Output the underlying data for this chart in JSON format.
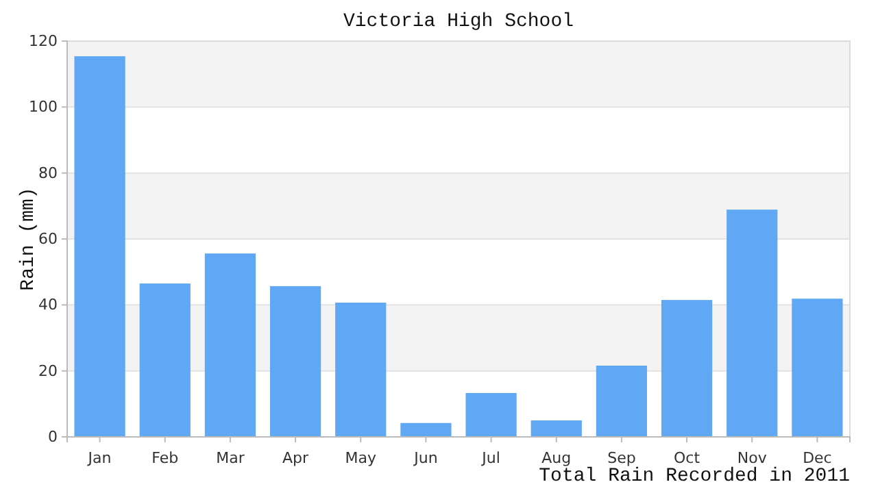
{
  "chart_data": {
    "type": "bar",
    "title": "Victoria High School",
    "xlabel": "Total Rain Recorded in 2011",
    "ylabel": "Rain (mm)",
    "categories": [
      "Jan",
      "Feb",
      "Mar",
      "Apr",
      "May",
      "Jun",
      "Jul",
      "Aug",
      "Sep",
      "Oct",
      "Nov",
      "Dec"
    ],
    "values": [
      115.4,
      46.5,
      55.6,
      45.7,
      40.7,
      4.2,
      13.3,
      5.0,
      21.6,
      41.5,
      68.9,
      41.9
    ],
    "color": "#60a8f4",
    "ylim": [
      0,
      120
    ],
    "yticks": [
      0,
      20,
      40,
      60,
      80,
      100,
      120
    ],
    "grid": "y"
  }
}
